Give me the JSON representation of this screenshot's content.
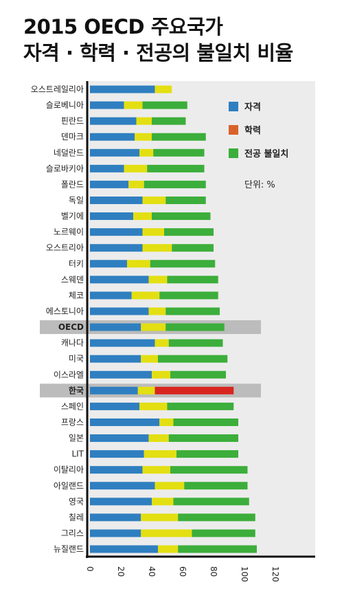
{
  "title_line1": "2015 OECD 주요국가",
  "title_line2": "자격 · 학력 · 전공의 불일치 비율",
  "unit_label": "단위: %",
  "colors": {
    "qualification": "#2f7fc0",
    "education": "#e3df12",
    "korea_education": "#d9251f",
    "field": "#3cae3b",
    "plot_bg": "#ececec",
    "highlight_band": "#bcbcbc",
    "legend_education": "#d9622b"
  },
  "chart_data": {
    "type": "bar",
    "orientation": "horizontal",
    "stacked": true,
    "title": "2015 OECD 주요국가 자격 · 학력 · 전공의 불일치 비율",
    "xlabel": "",
    "ylabel": "",
    "unit": "%",
    "xlim": [
      0,
      120
    ],
    "xticks": [
      0,
      20,
      40,
      60,
      80,
      100,
      120
    ],
    "legend_position": "top-right",
    "highlighted": [
      "OECD",
      "한국"
    ],
    "categories": [
      "오스트레일리아",
      "슬로베니아",
      "핀란드",
      "덴마크",
      "네덜란드",
      "슬로바키아",
      "폴란드",
      "독일",
      "벨기에",
      "노르웨이",
      "오스트리아",
      "터키",
      "스웨덴",
      "체코",
      "에스토니아",
      "OECD",
      "캐나다",
      "미국",
      "이스라엘",
      "한국",
      "스페인",
      "프랑스",
      "일본",
      "LIT",
      "이탈리아",
      "아일랜드",
      "영국",
      "칠레",
      "그리스",
      "뉴질랜드"
    ],
    "series": [
      {
        "name": "자격",
        "values": [
          42,
          22,
          30,
          29,
          32,
          22,
          25,
          34,
          28,
          34,
          34,
          24,
          38,
          27,
          38,
          33,
          42,
          33,
          40,
          31,
          32,
          45,
          38,
          35,
          34,
          42,
          40,
          33,
          33,
          44
        ]
      },
      {
        "name": "학력",
        "values": [
          11,
          12,
          10,
          11,
          9,
          15,
          10,
          15,
          12,
          14,
          19,
          15,
          12,
          18,
          11,
          16,
          9,
          11,
          12,
          11,
          18,
          9,
          13,
          21,
          18,
          19,
          14,
          24,
          33,
          13
        ]
      },
      {
        "name": "전공 불일치",
        "values": [
          0,
          29,
          22,
          35,
          33,
          37,
          40,
          26,
          38,
          32,
          27,
          42,
          33,
          38,
          35,
          38,
          35,
          45,
          36,
          51,
          43,
          42,
          45,
          40,
          50,
          41,
          49,
          50,
          41,
          51
        ]
      }
    ]
  }
}
